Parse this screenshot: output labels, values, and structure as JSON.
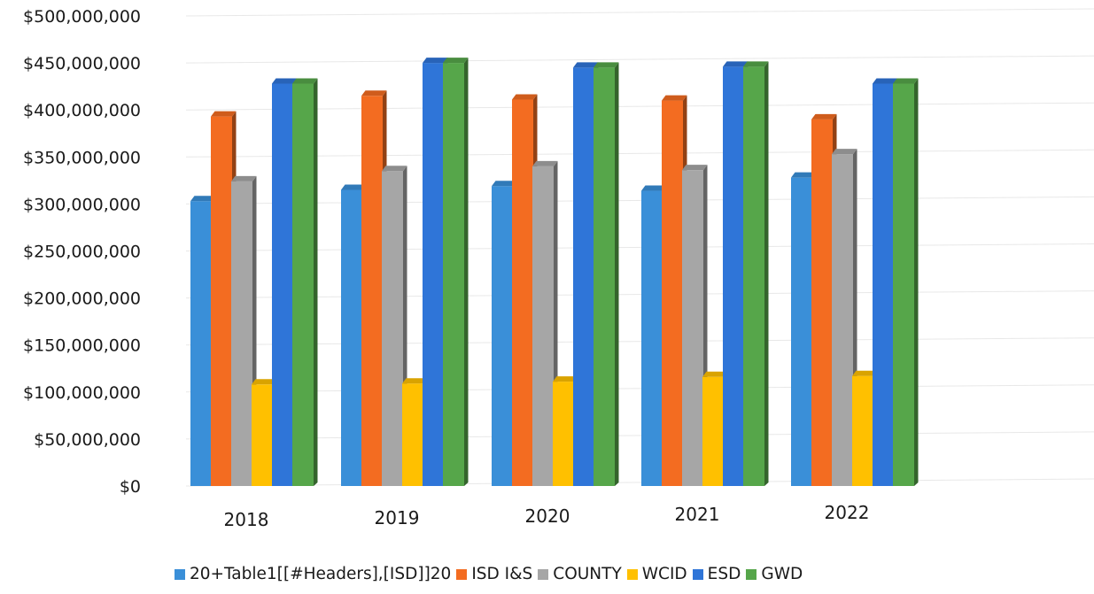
{
  "chart_data": {
    "type": "bar",
    "style": "3d-clustered-column",
    "categories": [
      "2018",
      "2019",
      "2020",
      "2021",
      "2022"
    ],
    "series": [
      {
        "name": "20+Table1[[#Headers],[ISD]]20",
        "color": "#3a8fd8",
        "values": [
          303000000,
          315000000,
          319000000,
          314000000,
          328000000
        ]
      },
      {
        "name": "ISD I&S",
        "color": "#f36c21",
        "values": [
          393000000,
          415000000,
          411000000,
          410000000,
          390000000
        ]
      },
      {
        "name": "COUNTY",
        "color": "#a6a6a6",
        "values": [
          324000000,
          335000000,
          340000000,
          336000000,
          353000000
        ]
      },
      {
        "name": "WCID",
        "color": "#ffc000",
        "values": [
          108000000,
          109000000,
          111000000,
          116000000,
          117000000
        ]
      },
      {
        "name": "ESD",
        "color": "#2f75d8",
        "values": [
          428000000,
          450000000,
          445000000,
          446000000,
          428000000
        ]
      },
      {
        "name": "GWD",
        "color": "#56a64a",
        "values": [
          428000000,
          450000000,
          445000000,
          446000000,
          428000000
        ]
      }
    ],
    "y_ticks": [
      "$0",
      "$50,000,000",
      "$100,000,000",
      "$150,000,000",
      "$200,000,000",
      "$250,000,000",
      "$300,000,000",
      "$350,000,000",
      "$400,000,000",
      "$450,000,000",
      "$500,000,000"
    ],
    "ylim": [
      0,
      500000000
    ],
    "grid": true,
    "legend_position": "bottom"
  }
}
